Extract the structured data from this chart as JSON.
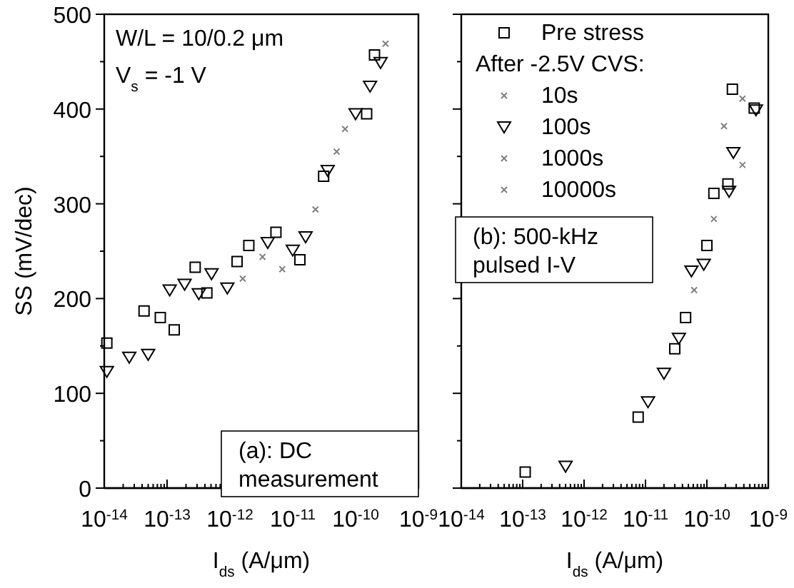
{
  "chart_data": [
    {
      "type": "scatter",
      "ylabel": "SS (mV/dec)",
      "xlabel": "I$_{ds}$ (A/μm)",
      "log": "x",
      "xlim": [
        1e-14,
        1e-09
      ],
      "xticks": [
        {
          "value": 1e-14,
          "label": "10$^{-14}$"
        },
        {
          "value": 1e-13,
          "label": "10$^{-13}$"
        },
        {
          "value": 1e-12,
          "label": "10$^{-12}$"
        },
        {
          "value": 1e-11,
          "label": "10$^{-11}$"
        },
        {
          "value": 1e-10,
          "label": "10$^{-10}$"
        },
        {
          "value": 1e-09,
          "label": "10$^{-9}$"
        }
      ],
      "ylim": [
        0,
        500
      ],
      "yticks": [
        0,
        {
          "value": 50,
          "label": null
        },
        100,
        {
          "value": 150,
          "label": null
        },
        200,
        {
          "value": 250,
          "label": null
        },
        300,
        {
          "value": 350,
          "label": null
        },
        400,
        {
          "value": 450,
          "label": null
        },
        500
      ],
      "annotations": [
        "W/L = 10/0.2 μm",
        "V$_{s}$ = -1 V",
        "(a): DC measurement"
      ],
      "series": [
        {
          "color": "#000000",
          "marker": "square",
          "x": [
            1.1e-14,
            4.3e-14,
            7.8e-14,
            1.3e-13,
            2.8e-13,
            4.3e-13,
            1.3e-12,
            2e-12,
            5.4e-12,
            1.3e-11,
            3.1e-11,
            1.5e-10,
            2e-10
          ],
          "values": [
            153,
            187,
            180,
            167,
            233,
            206,
            239,
            256,
            270,
            241,
            329,
            395,
            457
          ]
        },
        {
          "color": "#808080",
          "marker": "cross",
          "x": [
            1.6e-12,
            2.3e-11,
            3e-10
          ],
          "values": [
            221,
            294,
            469
          ]
        },
        {
          "color": "#000000",
          "marker": "triangle",
          "x": [
            1.1e-14,
            2.5e-14,
            5e-14,
            1.1e-13,
            1.9e-13,
            3.2e-13,
            5.1e-13,
            9.1e-13,
            4e-12,
            1e-11,
            1.6e-11,
            3.6e-11,
            1e-10,
            1.7e-10,
            2.5e-10
          ],
          "values": [
            123,
            138,
            141,
            209,
            215,
            205,
            226,
            211,
            259,
            251,
            265,
            335,
            395,
            424,
            449
          ]
        },
        {
          "color": "#808080",
          "marker": "cross",
          "x": [
            6.8e-12,
            6.8e-11
          ],
          "values": [
            231,
            379
          ]
        },
        {
          "color": "#808080",
          "marker": "cross",
          "x": [
            3.3e-12,
            5e-11
          ],
          "values": [
            244,
            355
          ]
        }
      ]
    },
    {
      "type": "scatter",
      "xlabel": "I$_{ds}$ (A/μm)",
      "log": "x",
      "xlim": [
        1e-14,
        1e-09
      ],
      "tick_labels": "x",
      "legend": "top left",
      "legend_title": "After -2.5V CVS:",
      "xticks": [
        {
          "value": 1e-14,
          "label": "10$^{-14}$"
        },
        {
          "value": 1e-13,
          "label": "10$^{-13}$"
        },
        {
          "value": 1e-12,
          "label": "10$^{-12}$"
        },
        {
          "value": 1e-11,
          "label": "10$^{-11}$"
        },
        {
          "value": 1e-10,
          "label": "10$^{-10}$"
        },
        {
          "value": 1e-09,
          "label": "10$^{-9}$"
        }
      ],
      "ylim": [
        0,
        500
      ],
      "yticks": [
        0,
        {
          "value": 50,
          "label": null
        },
        100,
        {
          "value": 150,
          "label": null
        },
        200,
        {
          "value": 250,
          "label": null
        },
        300,
        {
          "value": 350,
          "label": null
        },
        400,
        {
          "value": 450,
          "label": null
        },
        500
      ],
      "annotations": [
        "(b): 500-kHz pulsed I-V"
      ],
      "series": [
        {
          "name": "Pre stress",
          "color": "#000000",
          "marker": "square",
          "x": [
            1.1e-13,
            7.6e-12,
            3e-11,
            4.5e-11,
            1e-10,
            1.3e-10,
            2.2e-10,
            2.6e-10,
            5.9e-10
          ],
          "values": [
            17,
            75,
            147,
            180,
            256,
            311,
            321,
            421,
            401
          ]
        },
        {
          "name": "10s",
          "color": "#808080",
          "marker": "cross",
          "x": [
            6.2e-11,
            3.8e-10
          ],
          "values": [
            209,
            411
          ]
        },
        {
          "name": "100s",
          "color": "#000000",
          "marker": "triangle",
          "x": [
            5e-13,
            1.1e-11,
            2e-11,
            3.5e-11,
            5.6e-11,
            8.9e-11,
            2.3e-10,
            2.7e-10,
            6.3e-10
          ],
          "values": [
            23,
            91,
            121,
            158,
            229,
            236,
            313,
            354,
            399
          ]
        },
        {
          "name": "1000s",
          "color": "#808080",
          "marker": "cross",
          "x": [
            1.9e-10
          ],
          "values": [
            382
          ]
        },
        {
          "name": "10000s",
          "color": "#808080",
          "marker": "cross",
          "x": [
            1.3e-10,
            3.8e-10
          ],
          "values": [
            284,
            341
          ]
        }
      ]
    }
  ]
}
